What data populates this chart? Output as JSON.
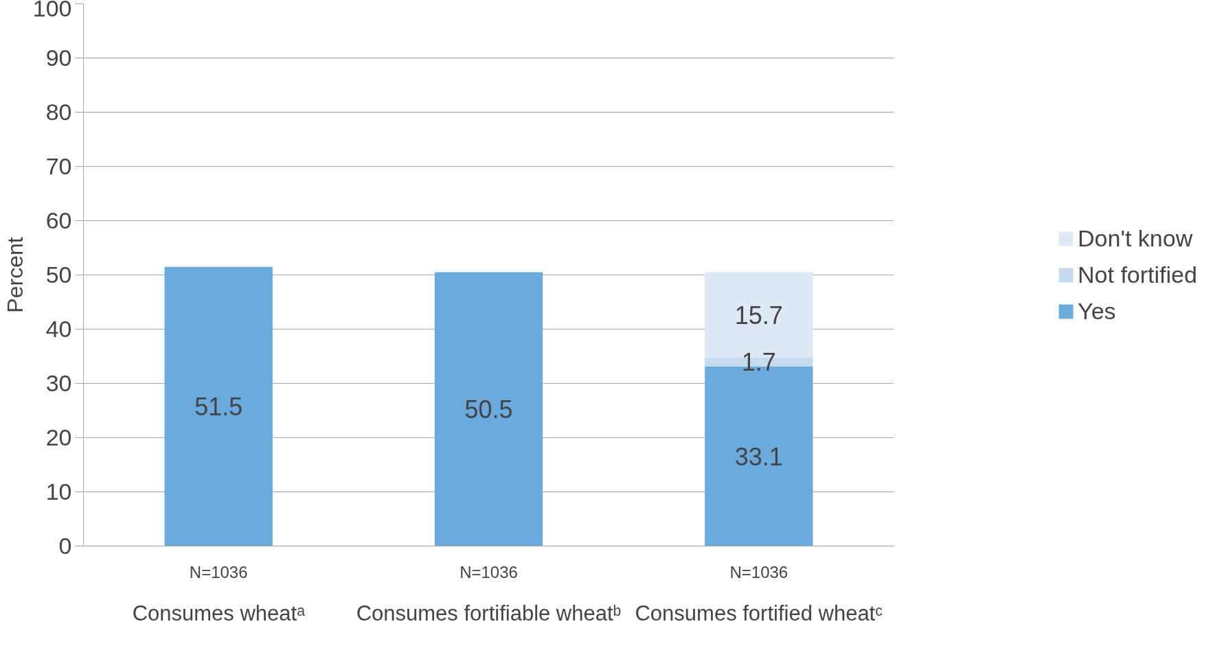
{
  "chart_data": {
    "type": "bar",
    "stacked": true,
    "ylabel": "Percent",
    "categories": [
      "Consumes wheatᵃ",
      "Consumes fortifiable wheatᵇ",
      "Consumes fortified wheatᶜ"
    ],
    "series": [
      {
        "name": "Yes",
        "color": "#6aaadc",
        "values": [
          51.5,
          50.5,
          33.1
        ]
      },
      {
        "name": "Not fortified",
        "color": "#c5dcee",
        "values": [
          null,
          null,
          1.7
        ]
      },
      {
        "name": "Don't know",
        "color": "#dde9f5",
        "values": [
          null,
          null,
          15.7
        ]
      }
    ],
    "ylim": [
      0,
      100
    ],
    "yticks": [
      0,
      10,
      20,
      30,
      40,
      50,
      60,
      70,
      80,
      90,
      100
    ],
    "grid": "y",
    "legend": "right",
    "data_labels": true,
    "annotations": [
      "N=1036",
      "N=1036",
      "N=1036"
    ]
  }
}
